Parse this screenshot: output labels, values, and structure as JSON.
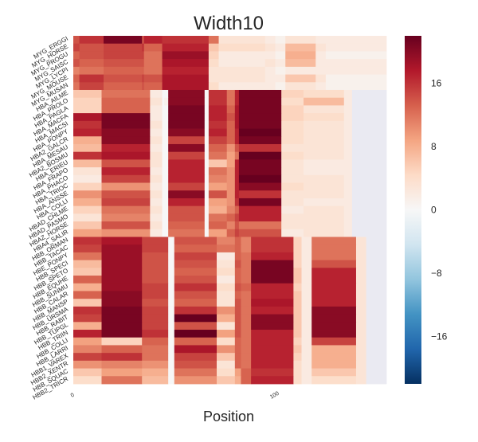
{
  "chart_data": {
    "type": "heatmap",
    "title": "Width10",
    "xlabel": "Position",
    "ylabel": "",
    "x_ticks": [
      {
        "value": 0,
        "label": "0"
      },
      {
        "value": 100,
        "label": "100"
      }
    ],
    "x_range": [
      0,
      155
    ],
    "row_labels": [
      "MYG_ERGGI",
      "MYG_HORSE",
      "MYG_PROGU",
      "MYG_SAISC",
      "MYG_LYCPI",
      "MYG_MOUSE",
      "MYG_MUSAN",
      "HBA_AILME",
      "HBA_PROLO",
      "HBA_PAGLA",
      "HBA_MACFA",
      "HBA_MACSI",
      "HBA_PONPY",
      "HBA2_GALCR",
      "HBA_MESAU",
      "HBA2_BOSMU",
      "HBA_ERIEU",
      "HBA_FRAPO",
      "HBA_PHACO",
      "HBA_TRIOC",
      "HBA_ANSSE",
      "HBA_COLLI",
      "HBAD_CHLME",
      "HBAD_PASMO",
      "HBAZ_HORSE",
      "HBA4_SALIR",
      "HBB_ORMAN",
      "HBB_TACAC",
      "HBE_PONPY",
      "HBB_SPECI",
      "HBB_SPETO",
      "HBB_EQUHE",
      "HBB_SUNMU",
      "HBB_CALAR",
      "HBB_MANSP",
      "HBB_URSMA",
      "HBB_RABIT",
      "HBB_TUPGL",
      "HBB_TRIIN",
      "HBB_COLLI",
      "HBB_LARRI",
      "HBB1_VAREX",
      "HBB2_XENTR",
      "HBB_SQUAC",
      "HBB2_TRICR"
    ],
    "row_label_ticks": [
      "MYG_ERGGI",
      "MYG_HORSE",
      "MYG_PROGU",
      "MYG_SAISC",
      "MYG_LYCPI",
      "MYG_MOUSE",
      "MYG_MUSAN",
      "HBA_AILME",
      "HBA_PROLO",
      "HBA_PAGLA",
      "HBA_MACFA",
      "HBA_MACSI",
      "HBA_PONPY",
      "HBA2_GALCR",
      "HBA_MESAU",
      "HBA2_BOSMU",
      "HBA_ERIEU",
      "HBA_FRAPO",
      "HBA_PHACO",
      "HBA_TRIOC",
      "HBA_ANSSE",
      "HBA_COLLI",
      "HBAD_CHLME",
      "HBAD_PASMO",
      "HBAZ_HORSE",
      "HBA4_SALIR",
      "HBB_ORMAN",
      "HBB_TACAC",
      "HBE_PONPY",
      "HBB_SPECI",
      "HBB_SPETO",
      "HBB_EQUHE",
      "HBB_SUNMU",
      "HBB_CALAR",
      "HBB_MANSP",
      "HBB_URSMA",
      "HBB_RABIT",
      "HBB_TUPGL",
      "HBB_TRIIN",
      "HBB_COLLI",
      "HBB_LARRI",
      "HBB1_VAREX",
      "HBB2_XENTR",
      "HBB_SQUAC",
      "HBB2_TRICR"
    ],
    "value_range": [
      -22,
      22
    ],
    "colorbar": {
      "ticks": [
        16,
        8,
        0,
        -8,
        -16
      ],
      "tick_labels": [
        "16",
        "8",
        "0",
        "−8",
        "−16"
      ],
      "colormap": "RdBu_r",
      "colors": [
        "#053061",
        "#2166ac",
        "#4393c3",
        "#92c5de",
        "#d1e5f0",
        "#f7f7f7",
        "#fddbc7",
        "#f4a582",
        "#d6604d",
        "#b2182b",
        "#67001f"
      ]
    },
    "missing_color": "#eaeaf2",
    "groups": [
      {
        "name": "MYG",
        "rows": [
          0,
          6
        ],
        "columns": [
          [
            0,
            3
          ],
          [
            3,
            15
          ],
          [
            15,
            34
          ],
          [
            34,
            35
          ],
          [
            35,
            44
          ],
          [
            44,
            67
          ],
          [
            67,
            72
          ],
          [
            72,
            95
          ],
          [
            95,
            100
          ],
          [
            100,
            105
          ],
          [
            105,
            120
          ],
          [
            120,
            125
          ],
          [
            125,
            155
          ]
        ],
        "values": [
          [
            14,
            16,
            21,
            14,
            17,
            16,
            12,
            3,
            2,
            1,
            3,
            2,
            2
          ],
          [
            15,
            14,
            15,
            16,
            13,
            17,
            6,
            4,
            3,
            2,
            7,
            3,
            2
          ],
          [
            13,
            14,
            15,
            15,
            12,
            19,
            5,
            2,
            2,
            1,
            8,
            2,
            1
          ],
          [
            14,
            13,
            14,
            14,
            12,
            18,
            4,
            2,
            3,
            2,
            7,
            2,
            2
          ],
          [
            11,
            12,
            13,
            13,
            12,
            17,
            3,
            3,
            2,
            1,
            2,
            2,
            2
          ],
          [
            13,
            16,
            14,
            15,
            14,
            18,
            3,
            3,
            2,
            2,
            6,
            3,
            1
          ],
          [
            12,
            15,
            13,
            14,
            13,
            18,
            4,
            2,
            2,
            1,
            3,
            2,
            1
          ]
        ]
      },
      {
        "name": "HBA",
        "rows": [
          7,
          25
        ],
        "columns": [
          [
            0,
            14
          ],
          [
            14,
            38
          ],
          [
            38,
            44
          ],
          [
            44,
            45
          ],
          [
            45,
            47
          ],
          [
            47,
            65
          ],
          [
            65,
            67
          ],
          [
            67,
            76
          ],
          [
            76,
            80
          ],
          [
            80,
            82
          ],
          [
            82,
            103
          ],
          [
            103,
            114
          ],
          [
            114,
            134
          ],
          [
            134,
            138
          ],
          [
            138,
            155
          ]
        ],
        "values": [
          [
            6,
            12,
            2,
            0,
            0,
            20,
            0,
            16,
            12,
            17,
            21,
            5,
            4,
            2,
            null
          ],
          [
            5,
            13,
            3,
            0,
            1,
            20,
            0,
            16,
            12,
            17,
            21,
            4,
            7,
            2,
            null
          ],
          [
            5,
            13,
            2,
            0,
            0,
            21,
            0,
            17,
            13,
            18,
            21,
            5,
            3,
            2,
            null
          ],
          [
            18,
            21,
            2,
            0,
            0,
            21,
            0,
            17,
            14,
            18,
            21,
            5,
            4,
            2,
            null
          ],
          [
            16,
            21,
            3,
            0,
            0,
            21,
            0,
            16,
            13,
            18,
            21,
            4,
            3,
            2,
            null
          ],
          [
            17,
            20,
            2,
            0,
            0,
            20,
            0,
            17,
            13,
            17,
            22,
            4,
            3,
            2,
            null
          ],
          [
            8,
            20,
            3,
            0,
            0,
            15,
            0,
            15,
            13,
            17,
            21,
            4,
            3,
            2,
            null
          ],
          [
            7,
            17,
            2,
            0,
            0,
            20,
            0,
            13,
            10,
            14,
            16,
            3,
            3,
            2,
            null
          ],
          [
            16,
            18,
            3,
            0,
            0,
            15,
            0,
            12,
            9,
            12,
            22,
            4,
            3,
            2,
            null
          ],
          [
            7,
            14,
            3,
            0,
            0,
            17,
            0,
            6,
            9,
            17,
            21,
            3,
            2,
            2,
            null
          ],
          [
            3,
            17,
            2,
            0,
            0,
            17,
            0,
            12,
            10,
            17,
            21,
            3,
            2,
            2,
            null
          ],
          [
            2,
            15,
            3,
            0,
            0,
            17,
            0,
            11,
            10,
            17,
            22,
            3,
            3,
            2,
            null
          ],
          [
            5,
            10,
            2,
            0,
            0,
            15,
            0,
            9,
            10,
            17,
            20,
            4,
            3,
            2,
            null
          ],
          [
            10,
            14,
            3,
            0,
            0,
            20,
            0,
            14,
            10,
            17,
            16,
            3,
            3,
            2,
            null
          ],
          [
            8,
            15,
            2,
            0,
            0,
            17,
            0,
            9,
            10,
            16,
            21,
            3,
            2,
            2,
            null
          ],
          [
            5,
            12,
            3,
            0,
            0,
            14,
            0,
            8,
            11,
            13,
            17,
            2,
            3,
            2,
            null
          ],
          [
            3,
            11,
            2,
            0,
            0,
            14,
            0,
            12,
            13,
            15,
            17,
            3,
            3,
            2,
            null
          ],
          [
            6,
            14,
            3,
            0,
            0,
            13,
            0,
            13,
            11,
            14,
            12,
            3,
            3,
            2,
            null
          ],
          [
            9,
            10,
            2,
            0,
            0,
            12,
            0,
            9,
            13,
            15,
            14,
            2,
            3,
            2,
            null
          ]
        ]
      },
      {
        "name": "HBB",
        "rows": [
          26,
          44
        ],
        "columns": [
          [
            0,
            14
          ],
          [
            14,
            34
          ],
          [
            34,
            47
          ],
          [
            47,
            48
          ],
          [
            48,
            50
          ],
          [
            50,
            71
          ],
          [
            71,
            80
          ],
          [
            80,
            83
          ],
          [
            83,
            88
          ],
          [
            88,
            109
          ],
          [
            109,
            113
          ],
          [
            113,
            118
          ],
          [
            118,
            140
          ],
          [
            140,
            145
          ],
          [
            145,
            155
          ]
        ],
        "values": [
          [
            16,
            18,
            15,
            0,
            0,
            14,
            11,
            13,
            11,
            16,
            5,
            2,
            12,
            3,
            null
          ],
          [
            15,
            19,
            15,
            0,
            0,
            13,
            12,
            13,
            11,
            16,
            5,
            2,
            12,
            3,
            null
          ],
          [
            12,
            19,
            14,
            0,
            0,
            15,
            2,
            13,
            12,
            17,
            5,
            2,
            12,
            3,
            null
          ],
          [
            7,
            19,
            14,
            0,
            0,
            14,
            3,
            14,
            12,
            21,
            5,
            2,
            14,
            3,
            null
          ],
          [
            6,
            19,
            14,
            0,
            0,
            13,
            4,
            13,
            12,
            21,
            6,
            2,
            17,
            3,
            null
          ],
          [
            13,
            19,
            14,
            0,
            0,
            14,
            2,
            13,
            12,
            21,
            6,
            2,
            17,
            3,
            null
          ],
          [
            8,
            19,
            15,
            0,
            0,
            16,
            4,
            14,
            13,
            17,
            5,
            2,
            17,
            3,
            null
          ],
          [
            13,
            20,
            15,
            0,
            0,
            14,
            3,
            13,
            12,
            17,
            6,
            2,
            17,
            3,
            null
          ],
          [
            6,
            20,
            14,
            0,
            0,
            13,
            3,
            14,
            12,
            18,
            6,
            2,
            17,
            3,
            null
          ],
          [
            16,
            21,
            15,
            0,
            0,
            16,
            10,
            14,
            12,
            17,
            6,
            2,
            20,
            3,
            null
          ],
          [
            15,
            21,
            15,
            0,
            0,
            22,
            8,
            14,
            12,
            20,
            6,
            2,
            20,
            3,
            null
          ],
          [
            8,
            21,
            15,
            0,
            0,
            14,
            3,
            14,
            12,
            20,
            6,
            2,
            20,
            3,
            null
          ],
          [
            17,
            21,
            16,
            0,
            0,
            22,
            9,
            14,
            12,
            17,
            6,
            2,
            20,
            3,
            null
          ],
          [
            9,
            5,
            13,
            0,
            0,
            13,
            4,
            13,
            12,
            17,
            5,
            2,
            15,
            3,
            null
          ],
          [
            11,
            13,
            12,
            0,
            0,
            18,
            10,
            13,
            12,
            17,
            6,
            2,
            8,
            3,
            null
          ],
          [
            15,
            16,
            12,
            0,
            0,
            15,
            6,
            13,
            12,
            17,
            5,
            2,
            8,
            3,
            null
          ],
          [
            10,
            11,
            10,
            0,
            0,
            14,
            3,
            13,
            12,
            17,
            4,
            2,
            8,
            3,
            null
          ],
          [
            6,
            9,
            8,
            0,
            0,
            12,
            4,
            9,
            13,
            16,
            4,
            2,
            6,
            3,
            null
          ],
          [
            4,
            12,
            7,
            0,
            0,
            10,
            6,
            8,
            13,
            17,
            4,
            2,
            4,
            3,
            null
          ]
        ]
      }
    ],
    "grid": false,
    "legend": "none"
  }
}
